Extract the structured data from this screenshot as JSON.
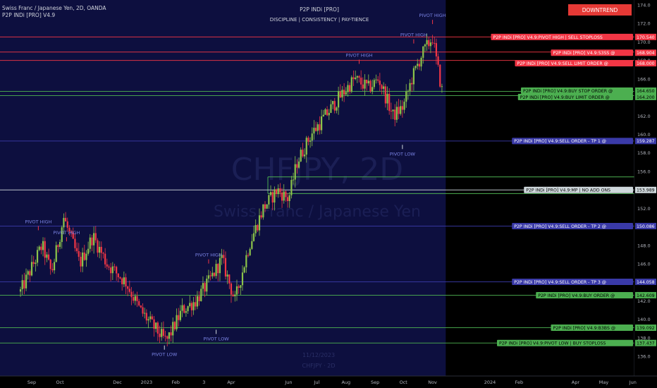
{
  "header": {
    "symbol_line": "Swiss Franc / Japanese Yen, 2D, OANDA",
    "indicator_line": "P2P INDi [PRO] V4.9"
  },
  "center_title": {
    "title": "P2P INDi [PRO]",
    "subtitle": "DISCIPLINE  |  CONSISTENCY  |  PAY-TIENCE"
  },
  "badge": {
    "label": "DOWNTREND",
    "color": "#e53935"
  },
  "watermark": {
    "symbol": "CHFJPY, 2D",
    "name": "Swiss Franc / Japanese Yen",
    "date": "11/12/2023",
    "ticker": "CHFJPY · 2D"
  },
  "colors": {
    "bull": "#8bc34a",
    "bear": "#f23645",
    "past_bg": "#0d0f3f",
    "future_bg": "#000000",
    "level_red": "#f23645",
    "level_green": "#4caf50",
    "level_blue": "#3a3aa8",
    "level_white": "#cfd8dc",
    "pivot_text": "#7c86e8"
  },
  "chart_data": {
    "type": "candlestick",
    "ylim": [
      135,
      174.6
    ],
    "y_ticks": [
      136.0,
      138.0,
      140.0,
      142.0,
      144.0,
      146.0,
      148.0,
      150.0,
      152.0,
      154.0,
      156.0,
      158.0,
      160.0,
      162.0,
      164.0,
      166.0,
      168.0,
      170.0,
      172.0,
      174.0
    ],
    "x_ticks": [
      "Sep",
      "Oct",
      "Dec",
      "2023",
      "Feb",
      "3",
      "Apr",
      "Jun",
      "Jul",
      "Aug",
      "Sep",
      "Oct",
      "Nov",
      "2024",
      "Feb",
      "Apr",
      "May",
      "Jun"
    ],
    "x_tick_dates": [
      "2022-09-01",
      "2022-10-01",
      "2022-12-01",
      "2023-01-01",
      "2023-02-01",
      "2023-03-03",
      "2023-04-01",
      "2023-06-01",
      "2023-07-01",
      "2023-08-01",
      "2023-09-01",
      "2023-10-01",
      "2023-11-01",
      "2024-01-01",
      "2024-02-01",
      "2024-04-01",
      "2024-05-01",
      "2024-06-01"
    ],
    "last_bar_date": "2023-11-12",
    "price_path": {
      "dates": [
        "2022-08-20",
        "2022-09-12",
        "2022-09-22",
        "2022-10-05",
        "2022-10-22",
        "2022-11-05",
        "2022-11-20",
        "2022-12-10",
        "2022-12-25",
        "2023-01-10",
        "2023-01-22",
        "2023-02-08",
        "2023-02-22",
        "2023-03-08",
        "2023-03-22",
        "2023-04-05",
        "2023-04-20",
        "2023-05-05",
        "2023-05-20",
        "2023-06-01",
        "2023-06-10",
        "2023-06-25",
        "2023-07-10",
        "2023-07-25",
        "2023-08-10",
        "2023-08-25",
        "2023-09-05",
        "2023-09-20",
        "2023-10-01",
        "2023-10-10",
        "2023-10-20",
        "2023-11-01",
        "2023-11-05",
        "2023-11-12"
      ],
      "closes": [
        143.0,
        148.0,
        145.0,
        151.0,
        146.0,
        149.0,
        146.0,
        144.0,
        141.0,
        139.0,
        137.6,
        141.0,
        142.0,
        144.0,
        146.5,
        142.0,
        148.0,
        152.0,
        154.0,
        153.0,
        157.0,
        160.0,
        162.0,
        164.0,
        166.0,
        165.0,
        166.0,
        162.0,
        163.0,
        166.0,
        168.5,
        170.5,
        168.0,
        164.2
      ]
    },
    "levels": [
      {
        "label": "P2P INDi [PRO] V4.9:PIVOT HIGH | SELL STOPLOSS",
        "value": 170.54,
        "color": "#f23645"
      },
      {
        "label": "P2P INDi [PRO] V4.9:S3SS @",
        "value": 168.904,
        "color": "#f23645"
      },
      {
        "label": "P2P INDi [PRO] V4.9:SELL LIMIT ORDER @",
        "value": 168.0,
        "color": "#f23645"
      },
      {
        "label": "P2P INDi [PRO] V4.9:BUY STOP ORDER @",
        "value": 164.65,
        "color": "#4caf50"
      },
      {
        "label": "P2P INDi [PRO] V4.9:BUY LIMIT ORDER @",
        "value": 164.2,
        "color": "#4caf50"
      },
      {
        "label": "P2P INDi [PRO] V4.9:SELL ORDER - TP 1 @",
        "value": 159.287,
        "color": "#3a3aa8"
      },
      {
        "label": "P2P INDi [PRO] V4.9:MP | NO ADD ONS",
        "value": 153.989,
        "color": "#cfd8dc"
      },
      {
        "label": "P2P INDi [PRO] V4.9:SELL ORDER - TP 2 @",
        "value": 150.086,
        "color": "#3a3aa8"
      },
      {
        "label": "P2P INDi [PRO] V4.9:SELL ORDER - TP 3 @",
        "value": 144.058,
        "color": "#3a3aa8"
      },
      {
        "label": "P2P INDi [PRO] V4.9:BUY ORDER @",
        "value": 142.609,
        "color": "#4caf50"
      },
      {
        "label": "P2P INDi [PRO] V4.9:B3BS @",
        "value": 139.092,
        "color": "#4caf50"
      },
      {
        "label": "P2P INDi [PRO] V4.9:PIVOT LOW | BUY STOPLOSS",
        "value": 137.437,
        "color": "#4caf50"
      }
    ],
    "value_labels": [
      "170.540",
      "168.904",
      "168.000",
      "164.650",
      "164.200",
      "159.287",
      "153.989",
      "150.086",
      "144.058",
      "142.609",
      "139.092",
      "137.437"
    ],
    "guide_lines": [
      {
        "value": 155.4,
        "color": "#4caf50"
      },
      {
        "value": 153.6,
        "color": "#4caf50"
      }
    ],
    "pivots": [
      {
        "label": "PIVOT HIGH",
        "date": "2022-09-08",
        "price": 149.4,
        "type": "high"
      },
      {
        "label": "PIVOT HIGH",
        "date": "2022-10-08",
        "price": 148.2,
        "type": "high"
      },
      {
        "label": "PIVOT LOW",
        "date": "2023-01-20",
        "price": 137.4,
        "type": "low"
      },
      {
        "label": "PIVOT HIGH",
        "date": "2023-03-08",
        "price": 145.8,
        "type": "high"
      },
      {
        "label": "PIVOT LOW",
        "date": "2023-03-16",
        "price": 139.1,
        "type": "low"
      },
      {
        "label": "PIVOT HIGH",
        "date": "2023-08-15",
        "price": 167.4,
        "type": "high"
      },
      {
        "label": "PIVOT HIGH",
        "date": "2023-10-12",
        "price": 169.6,
        "type": "high"
      },
      {
        "label": "PIVOT LOW",
        "date": "2023-09-30",
        "price": 159.1,
        "type": "low"
      },
      {
        "label": "PIVOT HIGH",
        "date": "2023-11-01",
        "price": 171.7,
        "type": "high"
      }
    ]
  }
}
